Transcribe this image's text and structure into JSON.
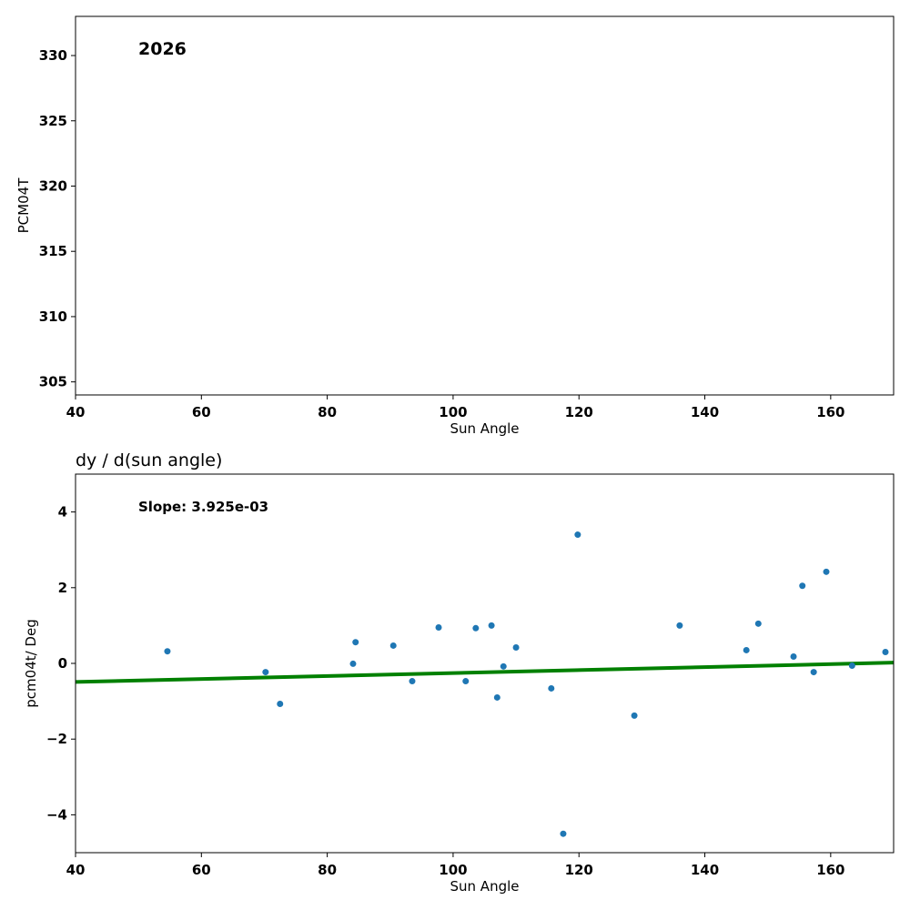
{
  "chart_data": [
    {
      "type": "scatter",
      "annotation": "2026",
      "xlabel": "Sun Angle",
      "ylabel": "PCM04T",
      "xlim": [
        40,
        170
      ],
      "ylim": [
        304,
        333
      ],
      "xticks": [
        40,
        60,
        80,
        100,
        120,
        140,
        160
      ],
      "yticks": [
        305,
        310,
        315,
        320,
        325,
        330
      ],
      "points": []
    },
    {
      "type": "scatter",
      "title": "dy / d(sun angle)",
      "annotation": "Slope: 3.925e-03",
      "xlabel": "Sun Angle",
      "ylabel": "pcm04t/ Deg",
      "xlim": [
        40,
        170
      ],
      "ylim": [
        -5,
        5
      ],
      "xticks": [
        40,
        60,
        80,
        100,
        120,
        140,
        160
      ],
      "yticks": [
        -4,
        -2,
        0,
        2,
        4
      ],
      "ytick_labels": [
        "−4",
        "−2",
        "0",
        "2",
        "4"
      ],
      "point_color": "#1f77b4",
      "fit": {
        "slope": 0.003925,
        "intercept": -0.647,
        "color": "#008000"
      },
      "points": [
        [
          54.6,
          0.32
        ],
        [
          70.2,
          -0.23
        ],
        [
          72.5,
          -1.07
        ],
        [
          84.1,
          -0.01
        ],
        [
          84.5,
          0.56
        ],
        [
          90.5,
          0.47
        ],
        [
          93.5,
          -0.47
        ],
        [
          97.7,
          0.95
        ],
        [
          102.0,
          -0.47
        ],
        [
          103.6,
          0.93
        ],
        [
          106.1,
          1.0
        ],
        [
          107.0,
          -0.9
        ],
        [
          108.0,
          -0.08
        ],
        [
          110.0,
          0.42
        ],
        [
          115.6,
          -0.66
        ],
        [
          117.5,
          -4.5
        ],
        [
          119.8,
          3.4
        ],
        [
          128.8,
          -1.38
        ],
        [
          136.0,
          1.0
        ],
        [
          146.6,
          0.35
        ],
        [
          148.5,
          1.05
        ],
        [
          154.1,
          0.18
        ],
        [
          155.5,
          2.05
        ],
        [
          157.3,
          -0.23
        ],
        [
          159.3,
          2.42
        ],
        [
          163.4,
          -0.06
        ],
        [
          168.7,
          0.3
        ]
      ]
    }
  ]
}
